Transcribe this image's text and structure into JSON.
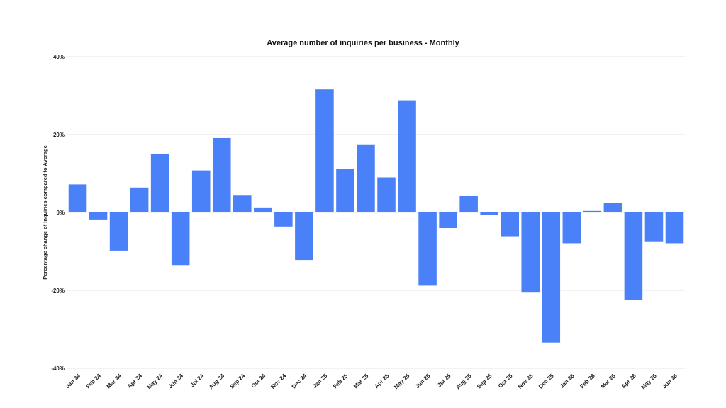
{
  "chart_data": {
    "type": "bar",
    "title": "Average number of inquiries per business - Monthly",
    "xlabel": "",
    "ylabel": "Percentage change of Inquiries compared to Average",
    "ylim": [
      -40,
      40
    ],
    "yticks": [
      "-40%",
      "-20%",
      "0%",
      "20%",
      "40%"
    ],
    "ytick_values": [
      -40,
      -20,
      0,
      20,
      40
    ],
    "grid": true,
    "bar_color": "#4a80f8",
    "gridline_color": "#e6e6e6",
    "categories": [
      "Jan 24",
      "Feb 24",
      "Mar 24",
      "Apr 24",
      "May 24",
      "Jun 24",
      "Jul 24",
      "Aug 24",
      "Sep 24",
      "Oct 24",
      "Nov 24",
      "Dec 24",
      "Jan 25",
      "Feb 25",
      "Mar 25",
      "Apr 25",
      "May 25",
      "Jun 25",
      "Jul 25",
      "Aug 25",
      "Sep 25",
      "Oct 25",
      "Nov 25",
      "Dec 25",
      "Jan 26",
      "Feb 26",
      "Mar 26",
      "Apr 26",
      "May 26",
      "Jun 26"
    ],
    "values": [
      7.2,
      -1.8,
      -9.8,
      6.4,
      15.1,
      -13.5,
      10.8,
      19.1,
      4.5,
      1.3,
      -3.6,
      -12.2,
      31.6,
      11.2,
      17.5,
      9.0,
      28.8,
      -18.8,
      -4.0,
      4.3,
      -0.7,
      -6.1,
      -20.4,
      -33.4,
      -7.9,
      0.4,
      2.5,
      -22.4,
      -7.4,
      -7.9
    ]
  }
}
